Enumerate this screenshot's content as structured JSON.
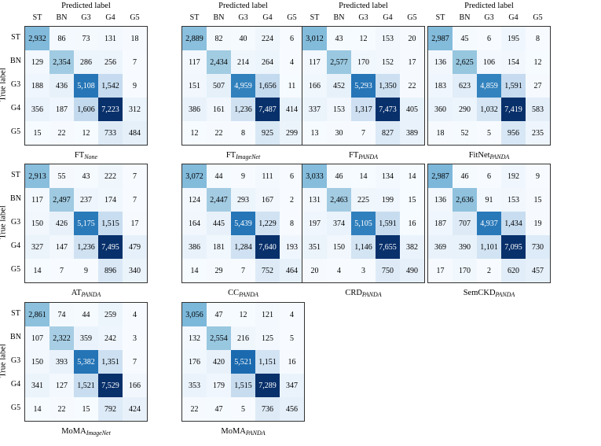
{
  "chart_data": {
    "type": "heatmap",
    "xlabel": "Predicted label",
    "ylabel": "True label",
    "labels": [
      "ST",
      "BN",
      "G3",
      "G4",
      "G5"
    ],
    "panels": [
      {
        "caption_main": "FT",
        "caption_sub": "None",
        "matrix": [
          [
            2932,
            86,
            73,
            131,
            18
          ],
          [
            129,
            2354,
            286,
            256,
            7
          ],
          [
            188,
            436,
            5108,
            1542,
            9
          ],
          [
            356,
            187,
            1606,
            7223,
            312
          ],
          [
            15,
            22,
            12,
            733,
            484
          ]
        ]
      },
      {
        "caption_main": "FT",
        "caption_sub": "ImageNet",
        "matrix": [
          [
            2889,
            82,
            40,
            224,
            6
          ],
          [
            117,
            2434,
            214,
            264,
            4
          ],
          [
            151,
            507,
            4959,
            1656,
            11
          ],
          [
            386,
            161,
            1236,
            7487,
            414
          ],
          [
            12,
            22,
            8,
            925,
            299
          ]
        ]
      },
      {
        "caption_main": "FT",
        "caption_sub": "PANDA",
        "matrix": [
          [
            3012,
            43,
            12,
            153,
            20
          ],
          [
            117,
            2577,
            170,
            152,
            17
          ],
          [
            166,
            452,
            5293,
            1350,
            22
          ],
          [
            337,
            153,
            1317,
            7473,
            405
          ],
          [
            13,
            30,
            7,
            827,
            389
          ]
        ]
      },
      {
        "caption_main": "FitNet",
        "caption_sub": "PANDA",
        "matrix": [
          [
            2987,
            45,
            6,
            195,
            8
          ],
          [
            136,
            2625,
            106,
            154,
            12
          ],
          [
            183,
            623,
            4859,
            1591,
            27
          ],
          [
            360,
            290,
            1032,
            7419,
            583
          ],
          [
            18,
            52,
            5,
            956,
            235
          ]
        ]
      },
      {
        "caption_main": "AT",
        "caption_sub": "PANDA",
        "matrix": [
          [
            2913,
            55,
            43,
            222,
            7
          ],
          [
            117,
            2497,
            237,
            174,
            7
          ],
          [
            150,
            426,
            5175,
            1515,
            17
          ],
          [
            327,
            147,
            1236,
            7495,
            479
          ],
          [
            14,
            7,
            9,
            896,
            340
          ]
        ]
      },
      {
        "caption_main": "CC",
        "caption_sub": "PANDA",
        "matrix": [
          [
            3072,
            44,
            9,
            111,
            6
          ],
          [
            124,
            2447,
            293,
            167,
            2
          ],
          [
            164,
            445,
            5439,
            1229,
            8
          ],
          [
            386,
            181,
            1284,
            7640,
            193
          ],
          [
            14,
            29,
            7,
            752,
            464
          ]
        ]
      },
      {
        "caption_main": "CRD",
        "caption_sub": "PANDA",
        "matrix": [
          [
            3033,
            46,
            14,
            134,
            14
          ],
          [
            131,
            2463,
            225,
            199,
            15
          ],
          [
            197,
            374,
            5105,
            1591,
            16
          ],
          [
            351,
            150,
            1146,
            7655,
            382
          ],
          [
            20,
            4,
            3,
            750,
            490
          ]
        ]
      },
      {
        "caption_main": "SemCKD",
        "caption_sub": "PANDA",
        "matrix": [
          [
            2987,
            46,
            6,
            192,
            9
          ],
          [
            136,
            2636,
            91,
            153,
            15
          ],
          [
            187,
            707,
            4937,
            1434,
            19
          ],
          [
            369,
            390,
            1101,
            7095,
            730
          ],
          [
            17,
            170,
            2,
            620,
            457
          ]
        ]
      },
      {
        "caption_main": "MoMA",
        "caption_sub": "ImageNet",
        "matrix": [
          [
            2861,
            74,
            44,
            259,
            4
          ],
          [
            107,
            2322,
            359,
            242,
            3
          ],
          [
            150,
            393,
            5382,
            1351,
            7
          ],
          [
            341,
            127,
            1521,
            7529,
            166
          ],
          [
            14,
            22,
            15,
            792,
            424
          ]
        ]
      },
      {
        "caption_main": "MoMA",
        "caption_sub": "PANDA",
        "matrix": [
          [
            3056,
            47,
            12,
            121,
            4
          ],
          [
            132,
            2554,
            216,
            125,
            5
          ],
          [
            176,
            420,
            5521,
            1151,
            16
          ],
          [
            353,
            179,
            1515,
            7289,
            347
          ],
          [
            22,
            47,
            5,
            736,
            456
          ]
        ]
      }
    ],
    "colormap": {
      "low": "#f7fbff",
      "high": "#08306b"
    },
    "grid": false
  }
}
